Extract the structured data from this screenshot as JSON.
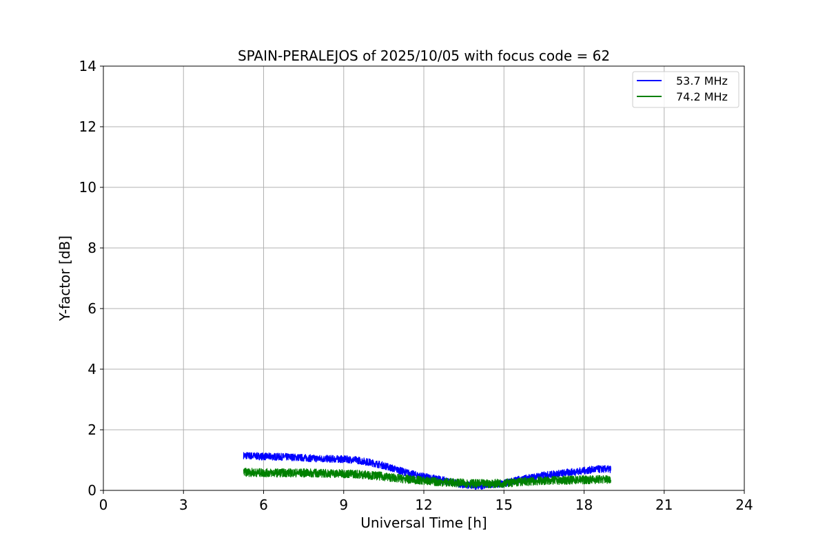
{
  "chart_data": {
    "type": "line",
    "title": "SPAIN-PERALEJOS of 2025/10/05 with focus code = 62",
    "xlabel": "Universal Time [h]",
    "ylabel": "Y-factor [dB]",
    "xlim": [
      0,
      24
    ],
    "ylim": [
      0,
      14
    ],
    "xticks": [
      0,
      3,
      6,
      9,
      12,
      15,
      18,
      21,
      24
    ],
    "yticks": [
      0,
      2,
      4,
      6,
      8,
      10,
      12,
      14
    ],
    "grid": true,
    "legend_position": "top-right",
    "series": [
      {
        "name": "53.7 MHz",
        "color": "#0000ff",
        "band": 0.12,
        "x": [
          5.25,
          6,
          7,
          8,
          9,
          9.5,
          10,
          10.5,
          11,
          11.5,
          12,
          12.5,
          13,
          13.5,
          14,
          14.5,
          15,
          15.5,
          16,
          16.5,
          17,
          17.5,
          18,
          18.5,
          19
        ],
        "y": [
          1.15,
          1.12,
          1.1,
          1.05,
          1.03,
          1.0,
          0.92,
          0.82,
          0.68,
          0.55,
          0.45,
          0.38,
          0.28,
          0.18,
          0.15,
          0.17,
          0.22,
          0.35,
          0.42,
          0.5,
          0.55,
          0.6,
          0.65,
          0.7,
          0.7
        ]
      },
      {
        "name": "74.2 MHz",
        "color": "#008000",
        "band": 0.14,
        "x": [
          5.25,
          6,
          7,
          8,
          9,
          9.5,
          10,
          10.5,
          11,
          11.5,
          12,
          12.5,
          13,
          13.5,
          14,
          14.5,
          15,
          15.5,
          16,
          16.5,
          17,
          17.5,
          18,
          18.5,
          19
        ],
        "y": [
          0.6,
          0.58,
          0.58,
          0.57,
          0.55,
          0.54,
          0.5,
          0.46,
          0.4,
          0.36,
          0.32,
          0.28,
          0.26,
          0.24,
          0.22,
          0.22,
          0.24,
          0.27,
          0.3,
          0.32,
          0.33,
          0.34,
          0.35,
          0.36,
          0.37
        ]
      }
    ]
  }
}
